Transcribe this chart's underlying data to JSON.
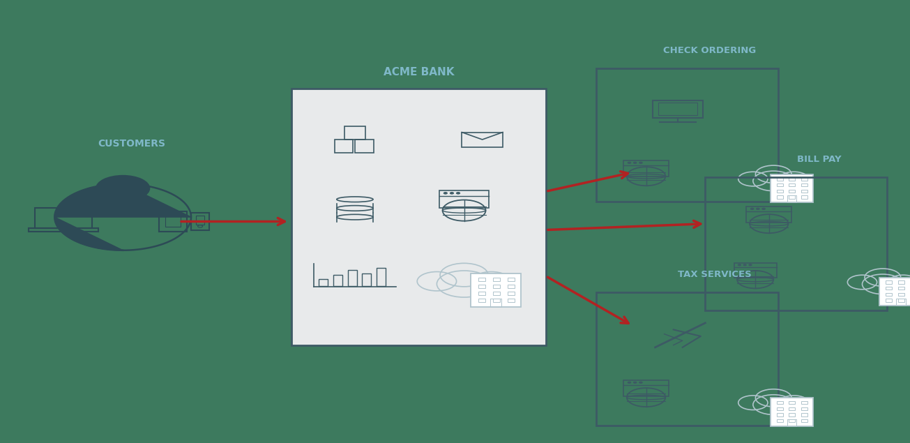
{
  "bg_color": "#3d7a5e",
  "label_color": "#7fb8c8",
  "dark_color": "#2d4a56",
  "arrow_color": "#b22222",
  "box_light": "#e8eaeb",
  "box_border": "#3d5a65",
  "icon_color": "#3d5a65",
  "icon_light": "#b0c4cc",
  "white": "#ffffff",
  "customers_label": "CUSTOMERS",
  "bank_label": "ACME BANK",
  "check_label": "CHECK ORDERING",
  "billpay_label": "BILL PAY",
  "tax_label": "TAX SERVICES"
}
